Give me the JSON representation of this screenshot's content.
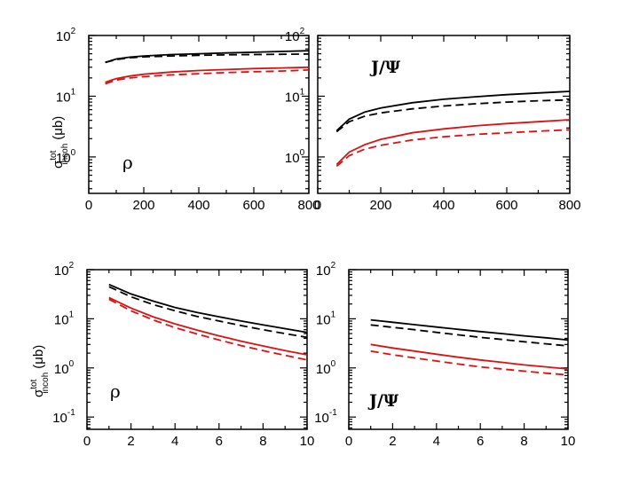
{
  "colors": {
    "black_series": "#000000",
    "red_series": "#dd1111"
  },
  "y_axis_label": {
    "main": "σ",
    "sup": "tot",
    "sub": "incoh",
    "unit": "(μb)"
  },
  "chart_data": [
    {
      "type": "line",
      "panel": "top-left",
      "label": "ρ",
      "yscale": "log",
      "xlim": [
        0,
        800
      ],
      "ylim_exp": [
        -0.6,
        2.0
      ],
      "x_ticks": [
        "0",
        "200",
        "400",
        "600",
        "800"
      ],
      "y_ticks": [
        {
          "base": "10",
          "exp": "2"
        },
        {
          "base": "10",
          "exp": "1"
        },
        {
          "base": "10",
          "exp": "0"
        }
      ],
      "series": [
        {
          "name": "black solid",
          "color": "black",
          "dash": false,
          "x": [
            60,
            100,
            150,
            200,
            300,
            400,
            500,
            600,
            700,
            800
          ],
          "y": [
            36,
            41,
            44,
            46,
            48.5,
            50,
            51.5,
            53,
            54.5,
            56
          ]
        },
        {
          "name": "black dashed",
          "color": "black",
          "dash": true,
          "x": [
            60,
            100,
            150,
            200,
            300,
            400,
            500,
            600,
            700,
            800
          ],
          "y": [
            36,
            40,
            43,
            44.5,
            46,
            47,
            48,
            48.5,
            49,
            49.5
          ]
        },
        {
          "name": "red solid",
          "color": "red",
          "dash": false,
          "x": [
            60,
            100,
            150,
            200,
            300,
            400,
            500,
            600,
            700,
            800
          ],
          "y": [
            17,
            19.5,
            21.5,
            23,
            25,
            26.5,
            27.5,
            28.5,
            29.2,
            30
          ]
        },
        {
          "name": "red dashed",
          "color": "red",
          "dash": true,
          "x": [
            60,
            100,
            150,
            200,
            300,
            400,
            500,
            600,
            700,
            800
          ],
          "y": [
            16,
            18.5,
            20,
            21,
            22.5,
            23.5,
            24.5,
            25.3,
            26,
            27
          ]
        }
      ]
    },
    {
      "type": "line",
      "panel": "top-right",
      "label": "J/Ψ",
      "yscale": "log",
      "xlim": [
        0,
        800
      ],
      "ylim_exp": [
        -0.6,
        2.0
      ],
      "x_ticks": [
        "0",
        "200",
        "400",
        "600",
        "800"
      ],
      "y_ticks": [
        {
          "base": "10",
          "exp": "2"
        },
        {
          "base": "10",
          "exp": "1"
        },
        {
          "base": "10",
          "exp": "0"
        }
      ],
      "series": [
        {
          "name": "black solid",
          "color": "black",
          "dash": false,
          "x": [
            60,
            100,
            150,
            200,
            300,
            400,
            500,
            600,
            700,
            800
          ],
          "y": [
            2.7,
            4.2,
            5.5,
            6.4,
            7.8,
            8.9,
            9.8,
            10.6,
            11.3,
            12
          ]
        },
        {
          "name": "black dashed",
          "color": "black",
          "dash": true,
          "x": [
            60,
            100,
            150,
            200,
            300,
            400,
            500,
            600,
            700,
            800
          ],
          "y": [
            2.6,
            3.8,
            4.7,
            5.3,
            6.2,
            6.9,
            7.5,
            8.0,
            8.4,
            8.7
          ]
        },
        {
          "name": "red solid",
          "color": "red",
          "dash": false,
          "x": [
            60,
            100,
            150,
            200,
            300,
            400,
            500,
            600,
            700,
            800
          ],
          "y": [
            0.75,
            1.2,
            1.6,
            1.95,
            2.5,
            2.9,
            3.25,
            3.55,
            3.8,
            4.1
          ]
        },
        {
          "name": "red dashed",
          "color": "red",
          "dash": true,
          "x": [
            60,
            100,
            150,
            200,
            300,
            400,
            500,
            600,
            700,
            800
          ],
          "y": [
            0.7,
            1.05,
            1.35,
            1.55,
            1.9,
            2.15,
            2.35,
            2.5,
            2.65,
            2.8
          ]
        }
      ]
    },
    {
      "type": "line",
      "panel": "bottom-left",
      "label": "ρ",
      "yscale": "log",
      "xlim": [
        0,
        10
      ],
      "ylim_exp": [
        -1.25,
        2.0
      ],
      "x_ticks": [
        "0",
        "2",
        "4",
        "6",
        "8",
        "10"
      ],
      "y_ticks": [
        {
          "base": "10",
          "exp": "2"
        },
        {
          "base": "10",
          "exp": "1"
        },
        {
          "base": "10",
          "exp": "0"
        },
        {
          "base": "10",
          "exp": "-1"
        }
      ],
      "series": [
        {
          "name": "black solid",
          "color": "black",
          "dash": false,
          "x": [
            1,
            2,
            3,
            4,
            5,
            6,
            7,
            8,
            9,
            10
          ],
          "y": [
            50,
            32,
            23,
            17,
            13.5,
            11,
            9,
            7.5,
            6.3,
            5.3
          ]
        },
        {
          "name": "black dashed",
          "color": "black",
          "dash": true,
          "x": [
            1,
            2,
            3,
            4,
            5,
            6,
            7,
            8,
            9,
            10
          ],
          "y": [
            45,
            28,
            19.5,
            14.5,
            11.2,
            9,
            7.3,
            6,
            5,
            4.2
          ]
        },
        {
          "name": "red solid",
          "color": "red",
          "dash": false,
          "x": [
            1,
            2,
            3,
            4,
            5,
            6,
            7,
            8,
            9,
            10
          ],
          "y": [
            27,
            16.5,
            11,
            7.9,
            5.9,
            4.5,
            3.5,
            2.8,
            2.25,
            1.85
          ]
        },
        {
          "name": "red dashed",
          "color": "red",
          "dash": true,
          "x": [
            1,
            2,
            3,
            4,
            5,
            6,
            7,
            8,
            9,
            10
          ],
          "y": [
            25,
            14.5,
            9.5,
            6.6,
            4.9,
            3.7,
            2.85,
            2.25,
            1.8,
            1.45
          ]
        }
      ]
    },
    {
      "type": "line",
      "panel": "bottom-right",
      "label": "J/Ψ",
      "yscale": "log",
      "xlim": [
        0,
        10
      ],
      "ylim_exp": [
        -1.25,
        2.0
      ],
      "x_ticks": [
        "0",
        "2",
        "4",
        "6",
        "8",
        "10"
      ],
      "y_ticks": [
        {
          "base": "10",
          "exp": "2"
        },
        {
          "base": "10",
          "exp": "1"
        },
        {
          "base": "10",
          "exp": "0"
        },
        {
          "base": "10",
          "exp": "-1"
        }
      ],
      "series": [
        {
          "name": "black solid",
          "color": "black",
          "dash": false,
          "x": [
            1,
            2,
            3,
            4,
            5,
            6,
            7,
            8,
            9,
            10
          ],
          "y": [
            9.5,
            8.5,
            7.6,
            6.8,
            6.1,
            5.5,
            5.0,
            4.5,
            4.1,
            3.7
          ]
        },
        {
          "name": "black dashed",
          "color": "black",
          "dash": true,
          "x": [
            1,
            2,
            3,
            4,
            5,
            6,
            7,
            8,
            9,
            10
          ],
          "y": [
            7.5,
            6.7,
            6.0,
            5.3,
            4.7,
            4.2,
            3.8,
            3.4,
            3.1,
            2.8
          ]
        },
        {
          "name": "red solid",
          "color": "red",
          "dash": false,
          "x": [
            1,
            2,
            3,
            4,
            5,
            6,
            7,
            8,
            9,
            10
          ],
          "y": [
            3.0,
            2.55,
            2.2,
            1.9,
            1.65,
            1.45,
            1.3,
            1.15,
            1.05,
            0.95
          ]
        },
        {
          "name": "red dashed",
          "color": "red",
          "dash": true,
          "x": [
            1,
            2,
            3,
            4,
            5,
            6,
            7,
            8,
            9,
            10
          ],
          "y": [
            2.2,
            1.85,
            1.6,
            1.38,
            1.2,
            1.05,
            0.95,
            0.86,
            0.78,
            0.72
          ]
        }
      ]
    }
  ]
}
